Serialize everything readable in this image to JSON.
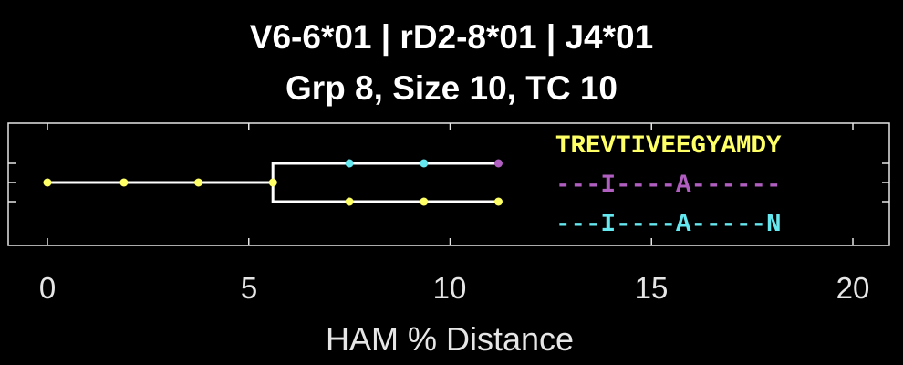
{
  "chart_data": {
    "type": "tree",
    "title": [
      "V6-6*01 | rD2-8*01 | J4*01",
      "Grp 8, Size 10, TC 10"
    ],
    "xlabel": "HAM % Distance",
    "ylabel": "",
    "xlim": [
      -0.5,
      21
    ],
    "xticks": [
      0,
      5,
      10,
      15,
      20
    ],
    "tick_labels": [
      "0",
      "5",
      "10",
      "15",
      "20"
    ],
    "grid": false,
    "colors": {
      "yellow": "#ffff66",
      "purple": "#b05fc0",
      "cyan": "#66e8f0",
      "line": "#ffffff",
      "axis": "#e6e6e6"
    },
    "branches": [
      {
        "name": "trunk",
        "points": [
          [
            0,
            0
          ],
          [
            5.6,
            0
          ]
        ]
      },
      {
        "name": "upper",
        "points": [
          [
            5.6,
            0
          ],
          [
            5.6,
            1
          ],
          [
            11.2,
            1
          ]
        ]
      },
      {
        "name": "lower",
        "points": [
          [
            5.6,
            0
          ],
          [
            5.6,
            -1
          ],
          [
            11.2,
            -1
          ]
        ]
      }
    ],
    "nodes": [
      {
        "x": 0,
        "y": 0,
        "color": "yellow"
      },
      {
        "x": 1.9,
        "y": 0,
        "color": "yellow"
      },
      {
        "x": 3.75,
        "y": 0,
        "color": "yellow"
      },
      {
        "x": 5.6,
        "y": 0,
        "color": "yellow"
      },
      {
        "x": 7.5,
        "y": 1,
        "color": "cyan"
      },
      {
        "x": 9.35,
        "y": 1,
        "color": "cyan"
      },
      {
        "x": 11.2,
        "y": 1,
        "color": "purple"
      },
      {
        "x": 7.5,
        "y": -1,
        "color": "yellow"
      },
      {
        "x": 9.35,
        "y": -1,
        "color": "yellow"
      },
      {
        "x": 11.2,
        "y": -1,
        "color": "yellow"
      }
    ],
    "sequences": [
      {
        "text": "TREVTIVEEGYAMDY",
        "color": "yellow"
      },
      {
        "text": "---I----A------",
        "color": "purple"
      },
      {
        "text": "---I----A-----N",
        "color": "cyan"
      }
    ]
  }
}
